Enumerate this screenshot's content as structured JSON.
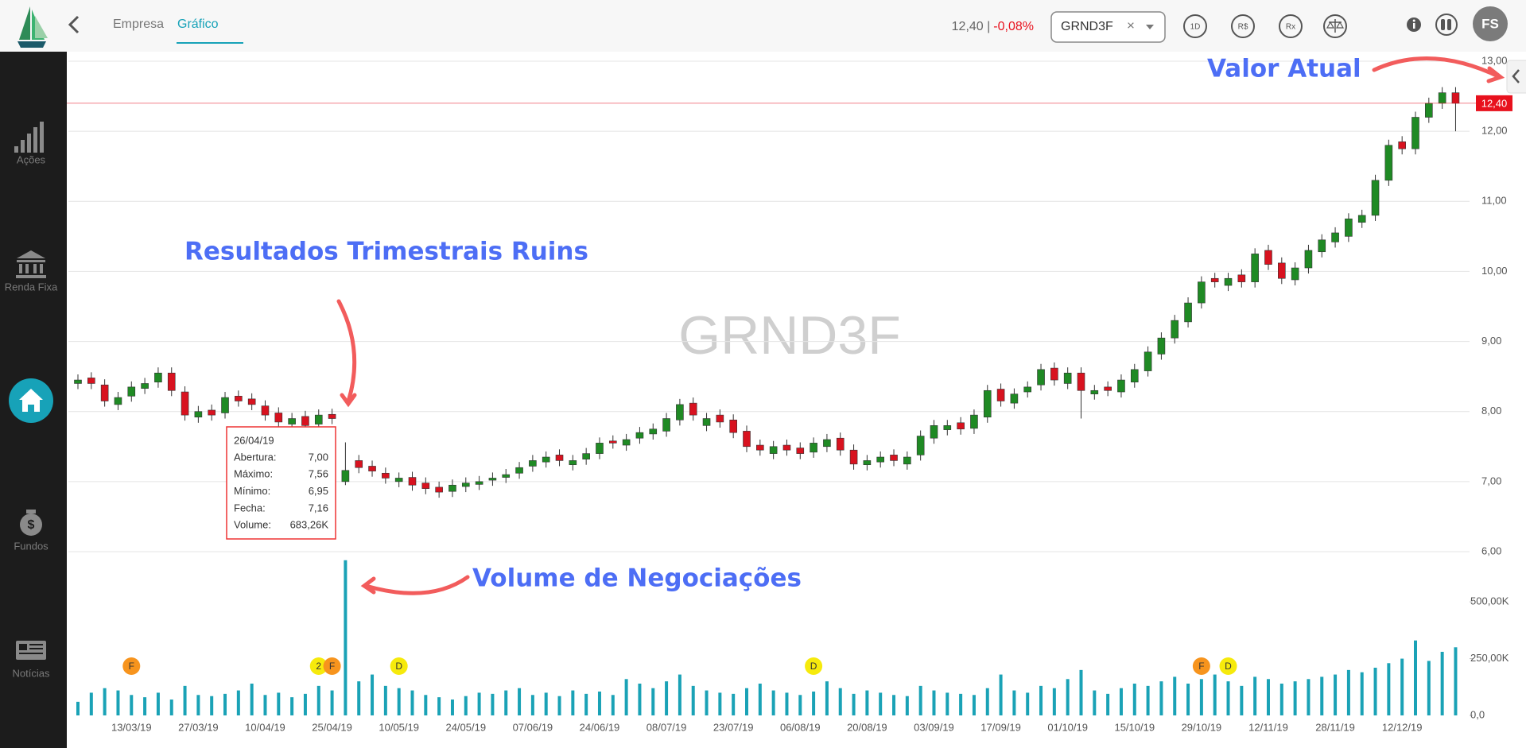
{
  "topbar": {
    "tabs": [
      "Empresa",
      "Gráfico"
    ],
    "active_tab": 1,
    "price": "12,40 |",
    "change": "-0,08%",
    "ticker": "GRND3F",
    "clear": "×",
    "buttons": [
      "1D",
      "R$",
      "Rx"
    ],
    "avatar": "FS"
  },
  "sidebar": {
    "items": [
      "Ações",
      "Renda Fixa",
      "Fundos",
      "Notícias"
    ]
  },
  "chart_data": {
    "type": "candlestick",
    "watermark": "GRND3F",
    "categories": [
      null,
      null,
      null,
      null,
      "13/03/19",
      null,
      null,
      null,
      null,
      "27/03/19",
      null,
      null,
      null,
      null,
      "10/04/19",
      null,
      null,
      null,
      null,
      "25/04/19",
      null,
      null,
      null,
      null,
      "10/05/19",
      null,
      null,
      null,
      null,
      "24/05/19",
      null,
      null,
      null,
      null,
      "07/06/19",
      null,
      null,
      null,
      null,
      "24/06/19",
      null,
      null,
      null,
      null,
      "08/07/19",
      null,
      null,
      null,
      null,
      "23/07/19",
      null,
      null,
      null,
      null,
      "06/08/19",
      null,
      null,
      null,
      null,
      "20/08/19",
      null,
      null,
      null,
      null,
      "03/09/19",
      null,
      null,
      null,
      null,
      "17/09/19",
      null,
      null,
      null,
      null,
      "01/10/19",
      null,
      null,
      null,
      null,
      "15/10/19",
      null,
      null,
      null,
      null,
      "29/10/19",
      null,
      null,
      null,
      null,
      "12/11/19",
      null,
      null,
      null,
      null,
      "28/11/19",
      null,
      null,
      null,
      null,
      "12/12/19",
      null,
      null,
      null,
      null
    ],
    "open": [
      8.4,
      8.48,
      8.38,
      8.1,
      8.22,
      8.33,
      8.42,
      8.55,
      8.28,
      7.92,
      8.02,
      7.98,
      8.22,
      8.18,
      8.08,
      7.98,
      7.82,
      7.93,
      7.82,
      7.96,
      7.0,
      7.3,
      7.22,
      7.12,
      7.0,
      7.06,
      6.98,
      6.92,
      6.86,
      6.93,
      6.96,
      7.02,
      7.06,
      7.12,
      7.22,
      7.28,
      7.38,
      7.24,
      7.32,
      7.4,
      7.58,
      7.52,
      7.62,
      7.68,
      7.72,
      7.88,
      8.12,
      7.8,
      7.95,
      7.88,
      7.72,
      7.52,
      7.4,
      7.52,
      7.48,
      7.42,
      7.5,
      7.62,
      7.45,
      7.24,
      7.28,
      7.38,
      7.25,
      7.38,
      7.62,
      7.74,
      7.84,
      7.76,
      7.92,
      8.32,
      8.12,
      8.28,
      8.38,
      8.62,
      8.4,
      8.55,
      8.25,
      8.35,
      8.28,
      8.42,
      8.58,
      8.82,
      9.05,
      9.28,
      9.55,
      9.9,
      9.8,
      9.95,
      9.85,
      10.3,
      10.12,
      9.88,
      10.05,
      10.28,
      10.42,
      10.5,
      10.7,
      10.8,
      11.3,
      11.85,
      11.75,
      12.2,
      12.4,
      12.55
    ],
    "high": [
      8.53,
      8.56,
      8.46,
      8.28,
      8.43,
      8.48,
      8.63,
      8.63,
      8.36,
      8.08,
      8.1,
      8.28,
      8.3,
      8.26,
      8.16,
      8.06,
      7.98,
      8.01,
      8.03,
      8.04,
      7.56,
      7.38,
      7.3,
      7.2,
      7.13,
      7.14,
      7.06,
      7.0,
      7.03,
      7.06,
      7.08,
      7.13,
      7.18,
      7.28,
      7.38,
      7.43,
      7.46,
      7.38,
      7.48,
      7.63,
      7.66,
      7.68,
      7.78,
      7.83,
      7.98,
      8.18,
      8.2,
      7.98,
      8.03,
      7.96,
      7.8,
      7.6,
      7.58,
      7.6,
      7.56,
      7.63,
      7.68,
      7.7,
      7.53,
      7.38,
      7.43,
      7.46,
      7.43,
      7.73,
      7.88,
      7.88,
      7.92,
      8.03,
      8.38,
      8.4,
      8.33,
      8.43,
      8.68,
      8.7,
      8.63,
      8.63,
      8.38,
      8.43,
      8.53,
      8.68,
      8.93,
      9.13,
      9.38,
      9.63,
      9.93,
      9.98,
      9.98,
      10.03,
      10.33,
      10.38,
      10.2,
      10.13,
      10.38,
      10.53,
      10.63,
      10.83,
      10.88,
      11.38,
      11.88,
      11.93,
      12.28,
      12.48,
      12.63,
      12.63
    ],
    "low": [
      8.32,
      8.32,
      8.07,
      8.02,
      8.14,
      8.25,
      8.34,
      8.22,
      7.87,
      7.84,
      7.87,
      7.9,
      8.07,
      8.02,
      7.87,
      7.77,
      7.74,
      7.72,
      7.74,
      7.82,
      6.95,
      7.12,
      7.07,
      6.97,
      6.92,
      6.87,
      6.82,
      6.77,
      6.78,
      6.85,
      6.88,
      6.94,
      6.98,
      7.04,
      7.14,
      7.2,
      7.22,
      7.16,
      7.24,
      7.32,
      7.47,
      7.44,
      7.54,
      7.6,
      7.64,
      7.8,
      7.87,
      7.72,
      7.77,
      7.62,
      7.42,
      7.37,
      7.32,
      7.37,
      7.32,
      7.34,
      7.42,
      7.37,
      7.17,
      7.16,
      7.2,
      7.22,
      7.17,
      7.3,
      7.54,
      7.66,
      7.67,
      7.68,
      7.84,
      8.07,
      8.04,
      8.2,
      8.3,
      8.37,
      8.32,
      7.9,
      8.17,
      8.22,
      8.2,
      8.34,
      8.5,
      8.74,
      8.97,
      9.2,
      9.47,
      9.77,
      9.72,
      9.77,
      9.77,
      10.02,
      9.82,
      9.8,
      9.97,
      10.2,
      10.34,
      10.42,
      10.62,
      10.72,
      11.22,
      11.67,
      11.67,
      12.12,
      12.32,
      12.0
    ],
    "close": [
      8.45,
      8.4,
      8.15,
      8.2,
      8.35,
      8.4,
      8.55,
      8.3,
      7.95,
      8.0,
      7.95,
      8.2,
      8.15,
      8.1,
      7.95,
      7.85,
      7.9,
      7.8,
      7.95,
      7.9,
      7.16,
      7.2,
      7.15,
      7.05,
      7.05,
      6.95,
      6.9,
      6.85,
      6.95,
      6.98,
      7.0,
      7.05,
      7.1,
      7.2,
      7.3,
      7.35,
      7.3,
      7.3,
      7.4,
      7.55,
      7.55,
      7.6,
      7.7,
      7.75,
      7.9,
      8.1,
      7.95,
      7.9,
      7.85,
      7.7,
      7.5,
      7.45,
      7.5,
      7.45,
      7.4,
      7.55,
      7.6,
      7.45,
      7.25,
      7.3,
      7.35,
      7.3,
      7.35,
      7.65,
      7.8,
      7.8,
      7.75,
      7.95,
      8.3,
      8.15,
      8.25,
      8.35,
      8.6,
      8.45,
      8.55,
      8.3,
      8.3,
      8.3,
      8.45,
      8.6,
      8.85,
      9.05,
      9.3,
      9.55,
      9.85,
      9.85,
      9.9,
      9.85,
      10.25,
      10.1,
      9.9,
      10.05,
      10.3,
      10.45,
      10.55,
      10.75,
      10.8,
      11.3,
      11.8,
      11.75,
      12.2,
      12.4,
      12.55,
      12.4
    ],
    "up_color": "#1f8a24",
    "down_color": "#d8121f",
    "ylim": [
      6,
      13
    ],
    "yticks": [
      {
        "value": 6,
        "label": "6,00"
      },
      {
        "value": 7,
        "label": "7,00"
      },
      {
        "value": 8,
        "label": "8,00"
      },
      {
        "value": 9,
        "label": "9,00"
      },
      {
        "value": 10,
        "label": "10,00"
      },
      {
        "value": 11,
        "label": "11,00"
      },
      {
        "value": 12,
        "label": "12,00"
      },
      {
        "value": 13,
        "label": "13,00"
      }
    ],
    "grid": true,
    "current": {
      "value": 12.4,
      "label": "12,40",
      "color": "#e8111d"
    },
    "volume": {
      "values": [
        60000,
        100000,
        120000,
        110000,
        90000,
        80000,
        100000,
        70000,
        130000,
        90000,
        85000,
        95000,
        110000,
        140000,
        90000,
        100000,
        80000,
        95000,
        130000,
        110000,
        683260,
        150000,
        180000,
        130000,
        120000,
        110000,
        90000,
        80000,
        70000,
        85000,
        100000,
        95000,
        110000,
        120000,
        90000,
        100000,
        85000,
        110000,
        95000,
        105000,
        90000,
        160000,
        140000,
        120000,
        150000,
        180000,
        130000,
        110000,
        100000,
        95000,
        120000,
        140000,
        110000,
        100000,
        90000,
        105000,
        150000,
        120000,
        95000,
        110000,
        100000,
        90000,
        85000,
        130000,
        110000,
        100000,
        95000,
        90000,
        120000,
        180000,
        110000,
        100000,
        130000,
        120000,
        160000,
        200000,
        110000,
        95000,
        120000,
        140000,
        130000,
        150000,
        170000,
        140000,
        160000,
        180000,
        150000,
        130000,
        170000,
        160000,
        140000,
        150000,
        160000,
        170000,
        180000,
        200000,
        190000,
        210000,
        230000,
        250000,
        330000,
        240000,
        280000,
        300000
      ],
      "color": "#1aa2b6",
      "ylim": [
        0,
        700000
      ],
      "yticks": [
        {
          "value": 0,
          "label": "0,0"
        },
        {
          "value": 250000,
          "label": "250,00K"
        },
        {
          "value": 500000,
          "label": "500,00K"
        }
      ]
    },
    "events": [
      null,
      null,
      null,
      null,
      "F",
      null,
      null,
      null,
      null,
      null,
      null,
      null,
      null,
      null,
      null,
      null,
      null,
      null,
      "2",
      "F",
      null,
      null,
      null,
      null,
      "D",
      null,
      null,
      null,
      null,
      null,
      null,
      null,
      null,
      null,
      null,
      null,
      null,
      null,
      null,
      null,
      null,
      null,
      null,
      null,
      null,
      null,
      null,
      null,
      null,
      null,
      null,
      null,
      null,
      null,
      null,
      "D",
      null,
      null,
      null,
      null,
      null,
      null,
      null,
      null,
      null,
      null,
      null,
      null,
      null,
      null,
      null,
      null,
      null,
      null,
      null,
      null,
      null,
      null,
      null,
      null,
      null,
      null,
      null,
      null,
      "F",
      null,
      "D",
      null,
      null,
      null,
      null,
      null,
      null,
      null,
      null,
      null,
      null,
      null,
      null,
      null,
      null,
      null,
      null,
      null
    ],
    "event_colors": {
      "F": "#f7941d",
      "D": "#f6ea0c",
      "2": "#f6ea0c"
    },
    "tooltip": {
      "date": "26/04/19",
      "rows": [
        {
          "label": "Abertura:",
          "value": "7,00"
        },
        {
          "label": "Máximo:",
          "value": "7,56"
        },
        {
          "label": "Mínimo:",
          "value": "6,95"
        },
        {
          "label": "Fecha:",
          "value": "7,16"
        },
        {
          "label": "Volume:",
          "value": "683,26K"
        }
      ]
    },
    "annotations": [
      "Resultados Trimestrais Ruins",
      "Volume de Negociações",
      "Valor Atual"
    ]
  }
}
